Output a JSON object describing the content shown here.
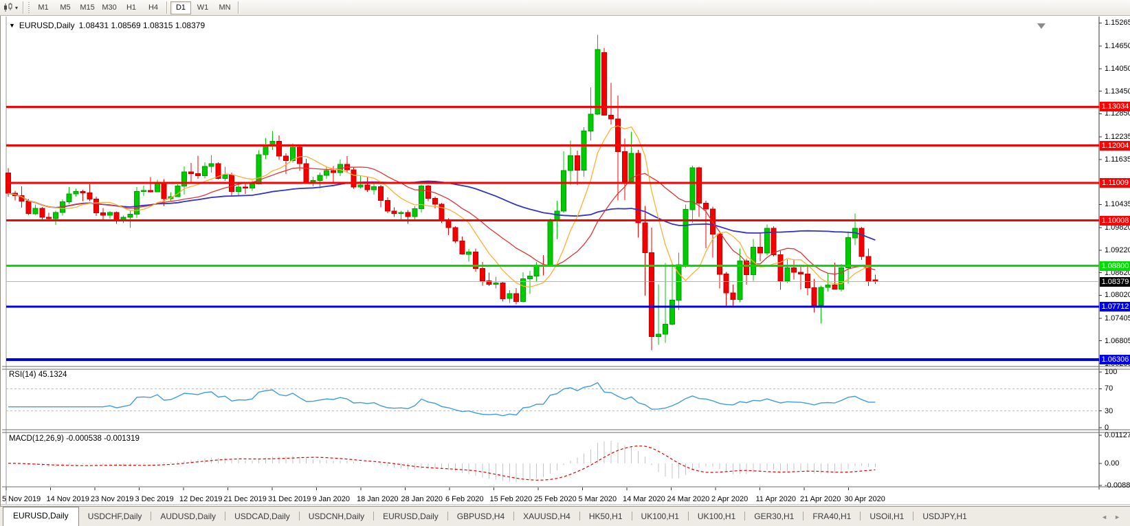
{
  "toolbar": {
    "timeframes": [
      "M1",
      "M5",
      "M15",
      "M30",
      "H1",
      "H4",
      "D1",
      "W1",
      "MN"
    ],
    "active_timeframe": "D1"
  },
  "icons": {
    "symbol_dropdown": "▼",
    "toolbar_dropdown": "▾",
    "tab_scroll_left": "◄",
    "tab_scroll_right": "►"
  },
  "chart": {
    "title_symbol": "EURUSD,Daily",
    "title_ohlc": "1.08431 1.08569 1.08315 1.08379",
    "price_ticks": [
      "1.15265",
      "1.14650",
      "1.14050",
      "1.13450",
      "1.12850",
      "1.12235",
      "1.11635",
      "1.10435",
      "1.09820",
      "1.09220",
      "1.08620",
      "1.08020",
      "1.07405",
      "1.06805",
      "1.06205"
    ],
    "levels": [
      {
        "label": "1.13034",
        "value": 1.13034,
        "color": "#FF0000",
        "width": 3
      },
      {
        "label": "1.12004",
        "value": 1.12004,
        "color": "#FF0000",
        "width": 3
      },
      {
        "label": "1.11009",
        "value": 1.11009,
        "color": "#FF0000",
        "width": 3
      },
      {
        "label": "1.10008",
        "value": 1.10008,
        "color": "#FF0000",
        "width": 3
      },
      {
        "label": "1.08800",
        "value": 1.088,
        "color": "#00DE00",
        "width": 3
      },
      {
        "label": "1.07712",
        "value": 1.07712,
        "color": "#0000F0",
        "width": 3
      },
      {
        "label": "1.06306",
        "value": 1.06306,
        "color": "#0000F0",
        "width": 4
      }
    ],
    "current_price": {
      "label": "1.08379",
      "value": 1.08379
    },
    "date_ticks": [
      "5 Nov 2019",
      "14 Nov 2019",
      "23 Nov 2019",
      "3 Dec 2019",
      "12 Dec 2019",
      "21 Dec 2019",
      "31 Dec 2019",
      "9 Jan 2020",
      "18 Jan 2020",
      "28 Jan 2020",
      "6 Feb 2020",
      "15 Feb 2020",
      "25 Feb 2020",
      "5 Mar 2020",
      "14 Mar 2020",
      "24 Mar 2020",
      "2 Apr 2020",
      "11 Apr 2020",
      "21 Apr 2020",
      "30 Apr 2020"
    ]
  },
  "chart_data": {
    "type": "candlestick",
    "symbol": "EURUSD",
    "timeframe": "Daily",
    "x_range": [
      "5 Nov 2019",
      "6 May 2020"
    ],
    "price_axis_range": [
      1.06123,
      1.15364
    ],
    "overlays": [
      "ma-fast-orange",
      "ma-mid-red",
      "ma-slow-blue",
      "horizontal-levels"
    ],
    "candles_ohlc": [
      [
        1.1127,
        1.114,
        1.1064,
        1.1073
      ],
      [
        1.1073,
        1.108,
        1.1054,
        1.1067
      ],
      [
        1.1067,
        1.1092,
        1.1035,
        1.1052
      ],
      [
        1.1052,
        1.1058,
        1.1016,
        1.1019
      ],
      [
        1.1019,
        1.1043,
        1.1016,
        1.1033
      ],
      [
        1.1033,
        1.1037,
        1.1002,
        1.1009
      ],
      [
        1.1009,
        1.1021,
        1.1001,
        1.1006
      ],
      [
        1.1006,
        1.1027,
        1.0989,
        1.1022
      ],
      [
        1.1022,
        1.1057,
        1.1014,
        1.1051
      ],
      [
        1.1051,
        1.109,
        1.1045,
        1.1072
      ],
      [
        1.1072,
        1.1085,
        1.1064,
        1.1078
      ],
      [
        1.1078,
        1.1083,
        1.1052,
        1.1074
      ],
      [
        1.1074,
        1.1097,
        1.1052,
        1.1058
      ],
      [
        1.1058,
        1.1064,
        1.1013,
        1.1021
      ],
      [
        1.1021,
        1.1034,
        1.1003,
        1.1015
      ],
      [
        1.1015,
        1.1026,
        1.1006,
        1.1022
      ],
      [
        1.1022,
        1.1025,
        1.0992,
        1.1001
      ],
      [
        1.1001,
        1.1014,
        1.0994,
        1.1009
      ],
      [
        1.1009,
        1.1028,
        1.0981,
        1.1018
      ],
      [
        1.1018,
        1.109,
        1.1008,
        1.1078
      ],
      [
        1.1078,
        1.1094,
        1.1066,
        1.1081
      ],
      [
        1.1081,
        1.1116,
        1.1075,
        1.1077
      ],
      [
        1.1077,
        1.1109,
        1.1077,
        1.1103
      ],
      [
        1.1103,
        1.1111,
        1.104,
        1.1059
      ],
      [
        1.1059,
        1.1076,
        1.1052,
        1.1064
      ],
      [
        1.1064,
        1.1097,
        1.1063,
        1.1093
      ],
      [
        1.1093,
        1.1145,
        1.107,
        1.113
      ],
      [
        1.113,
        1.1154,
        1.1102,
        1.1126
      ],
      [
        1.1126,
        1.1173,
        1.1112,
        1.112
      ],
      [
        1.112,
        1.1156,
        1.1113,
        1.1145
      ],
      [
        1.1145,
        1.1175,
        1.1128,
        1.1152
      ],
      [
        1.1152,
        1.1156,
        1.111,
        1.1113
      ],
      [
        1.1113,
        1.1144,
        1.1106,
        1.1122
      ],
      [
        1.1122,
        1.1128,
        1.1066,
        1.1078
      ],
      [
        1.1078,
        1.1096,
        1.1068,
        1.109
      ],
      [
        1.109,
        1.1098,
        1.1072,
        1.1087
      ],
      [
        1.1087,
        1.1107,
        1.108,
        1.1098
      ],
      [
        1.1098,
        1.1188,
        1.1096,
        1.1176
      ],
      [
        1.1176,
        1.1221,
        1.1164,
        1.1199
      ],
      [
        1.1199,
        1.1239,
        1.1189,
        1.1212
      ],
      [
        1.1212,
        1.1227,
        1.1162,
        1.1172
      ],
      [
        1.1172,
        1.118,
        1.1125,
        1.116
      ],
      [
        1.116,
        1.1206,
        1.1155,
        1.1196
      ],
      [
        1.1196,
        1.1199,
        1.1133,
        1.1152
      ],
      [
        1.1152,
        1.1165,
        1.1103,
        1.1105
      ],
      [
        1.1105,
        1.1117,
        1.1092,
        1.1107
      ],
      [
        1.1107,
        1.1128,
        1.1086,
        1.1121
      ],
      [
        1.1121,
        1.1145,
        1.1112,
        1.1134
      ],
      [
        1.1134,
        1.1146,
        1.1104,
        1.1128
      ],
      [
        1.1128,
        1.1163,
        1.1119,
        1.115
      ],
      [
        1.115,
        1.1172,
        1.1129,
        1.1136
      ],
      [
        1.1136,
        1.1141,
        1.1085,
        1.109
      ],
      [
        1.109,
        1.1119,
        1.1086,
        1.1095
      ],
      [
        1.1095,
        1.1118,
        1.1077,
        1.1083
      ],
      [
        1.1083,
        1.1098,
        1.107,
        1.1091
      ],
      [
        1.1091,
        1.1095,
        1.1036,
        1.1054
      ],
      [
        1.1054,
        1.1062,
        1.102,
        1.1026
      ],
      [
        1.1026,
        1.1036,
        1.101,
        1.1019
      ],
      [
        1.1019,
        1.1027,
        1.0998,
        1.1022
      ],
      [
        1.1022,
        1.1029,
        1.0992,
        1.1011
      ],
      [
        1.1011,
        1.1039,
        1.1004,
        1.1032
      ],
      [
        1.1032,
        1.1096,
        1.1022,
        1.1093
      ],
      [
        1.1093,
        1.1095,
        1.1052,
        1.106
      ],
      [
        1.106,
        1.1064,
        1.1033,
        1.1044
      ],
      [
        1.1044,
        1.1048,
        1.0994,
        1.1
      ],
      [
        1.1,
        1.1007,
        1.0962,
        1.0982
      ],
      [
        1.0982,
        1.0986,
        1.0941,
        1.0946
      ],
      [
        1.0946,
        1.0958,
        1.091,
        1.0911
      ],
      [
        1.0911,
        1.0925,
        1.0891,
        1.0917
      ],
      [
        1.0917,
        1.0926,
        1.0865,
        1.0873
      ],
      [
        1.0873,
        1.089,
        1.0827,
        1.084
      ],
      [
        1.084,
        1.0862,
        1.0826,
        1.0831
      ],
      [
        1.0831,
        1.0851,
        1.082,
        1.0835
      ],
      [
        1.0835,
        1.0839,
        1.0785,
        1.0793
      ],
      [
        1.0793,
        1.0815,
        1.0782,
        1.0806
      ],
      [
        1.0806,
        1.0821,
        1.0778,
        1.0785
      ],
      [
        1.0785,
        1.0863,
        1.0783,
        1.0846
      ],
      [
        1.0846,
        1.0867,
        1.0805,
        1.0853
      ],
      [
        1.0853,
        1.089,
        1.0839,
        1.0882
      ],
      [
        1.0882,
        1.0909,
        1.0855,
        1.0881
      ],
      [
        1.0881,
        1.1006,
        1.088,
        1.0999
      ],
      [
        1.0999,
        1.1053,
        1.0951,
        1.1026
      ],
      [
        1.1026,
        1.1185,
        1.1021,
        1.1134
      ],
      [
        1.1134,
        1.1213,
        1.1095,
        1.1173
      ],
      [
        1.1173,
        1.1187,
        1.1095,
        1.1135
      ],
      [
        1.1135,
        1.1249,
        1.1117,
        1.1239
      ],
      [
        1.1239,
        1.1355,
        1.1213,
        1.1284
      ],
      [
        1.1284,
        1.1495,
        1.1282,
        1.1456
      ],
      [
        1.1448,
        1.146,
        1.1287,
        1.1281
      ],
      [
        1.1281,
        1.1367,
        1.1256,
        1.1271
      ],
      [
        1.1271,
        1.1333,
        1.1054,
        1.1184
      ],
      [
        1.1184,
        1.1219,
        1.1055,
        1.1105
      ],
      [
        1.1105,
        1.1237,
        1.11,
        1.118
      ],
      [
        1.118,
        1.1189,
        1.0955,
        1.0995
      ],
      [
        1.0995,
        1.104,
        1.0801,
        1.0915
      ],
      [
        1.0915,
        1.0982,
        1.0655,
        1.0692
      ],
      [
        1.0692,
        1.0831,
        1.067,
        1.0698
      ],
      [
        1.0698,
        1.0888,
        1.0675,
        1.0725
      ],
      [
        1.0725,
        1.0887,
        1.0722,
        1.0789
      ],
      [
        1.0789,
        1.0915,
        1.0762,
        1.0883
      ],
      [
        1.0883,
        1.1043,
        1.0875,
        1.103
      ],
      [
        1.103,
        1.1147,
        1.0995,
        1.1141
      ],
      [
        1.1141,
        1.1144,
        1.101,
        1.1047
      ],
      [
        1.1047,
        1.1053,
        1.0927,
        1.1031
      ],
      [
        1.1031,
        1.1038,
        1.0902,
        1.0965
      ],
      [
        1.0965,
        1.0966,
        1.082,
        1.0858
      ],
      [
        1.0858,
        1.0864,
        1.0773,
        1.0808
      ],
      [
        1.0808,
        1.083,
        1.0769,
        1.0791
      ],
      [
        1.0791,
        1.0926,
        1.0783,
        1.0893
      ],
      [
        1.0893,
        1.0899,
        1.083,
        1.0857
      ],
      [
        1.0857,
        1.0952,
        1.084,
        1.093
      ],
      [
        1.093,
        1.0967,
        1.0892,
        1.0914
      ],
      [
        1.0914,
        1.099,
        1.0908,
        1.098
      ],
      [
        1.098,
        1.0986,
        1.0905,
        1.091
      ],
      [
        1.091,
        1.092,
        1.0816,
        1.084
      ],
      [
        1.084,
        1.0898,
        1.0835,
        1.0875
      ],
      [
        1.0875,
        1.0897,
        1.0844,
        1.0863
      ],
      [
        1.0863,
        1.0879,
        1.0817,
        1.0858
      ],
      [
        1.0858,
        1.0884,
        1.0802,
        1.0822
      ],
      [
        1.0822,
        1.0846,
        1.0756,
        1.0775
      ],
      [
        1.0775,
        1.0827,
        1.0727,
        1.0823
      ],
      [
        1.0823,
        1.0861,
        1.0812,
        1.0829
      ],
      [
        1.0829,
        1.0889,
        1.0818,
        1.0818
      ],
      [
        1.0818,
        1.0885,
        1.0812,
        1.0875
      ],
      [
        1.0875,
        1.0972,
        1.0833,
        1.0955
      ],
      [
        1.0955,
        1.1019,
        1.0935,
        1.098
      ],
      [
        1.098,
        1.0984,
        1.0896,
        1.0905
      ],
      [
        1.0905,
        1.0926,
        1.0826,
        1.0838
      ],
      [
        1.08431,
        1.08569,
        1.08315,
        1.08379
      ]
    ]
  },
  "rsi": {
    "label": "RSI(14) 45.1324",
    "ticks": [
      "100",
      "70",
      "30",
      "0"
    ],
    "dashed_levels": [
      70,
      30
    ]
  },
  "macd": {
    "label": "MACD(12,26,9) -0.000538 -0.001319",
    "ticks": [
      "0.011277",
      "0.00",
      "-0.008845"
    ],
    "axis_range": [
      -0.008845,
      0.011277
    ]
  },
  "tabs": [
    {
      "label": "EURUSD,Daily",
      "active": true
    },
    {
      "label": "USDCHF,Daily",
      "active": false
    },
    {
      "label": "AUDUSD,Daily",
      "active": false
    },
    {
      "label": "USDCAD,Daily",
      "active": false
    },
    {
      "label": "USDCNH,Daily",
      "active": false
    },
    {
      "label": "EURUSD,Daily",
      "active": false
    },
    {
      "label": "GBPUSD,H4",
      "active": false
    },
    {
      "label": "XAUUSD,H4",
      "active": false
    },
    {
      "label": "HK50,H1",
      "active": false
    },
    {
      "label": "UK100,H1",
      "active": false
    },
    {
      "label": "UK100,H1",
      "active": false
    },
    {
      "label": "GER30,H1",
      "active": false
    },
    {
      "label": "FRA40,H1",
      "active": false
    },
    {
      "label": "USOil,H1",
      "active": false
    },
    {
      "label": "USDJPY,H1",
      "active": false
    }
  ],
  "colors": {
    "bull": "#00CB00",
    "bull_stroke": "#009E00",
    "bear": "#F40000",
    "bear_stroke": "#C40000",
    "ma_fast": "#FFAE33",
    "ma_mid": "#E03232",
    "ma_slow": "#3232C8",
    "rsi_line": "#3E9BDE",
    "rsi_dash": "#BBBBBB",
    "macd_hist": "#C4C4C4",
    "macd_signal": "#E00000",
    "current_price_line": "#B4B4B4",
    "current_badge_bg": "#000000",
    "axis_line": "#555555",
    "panel_border": "#6A6A6A"
  }
}
